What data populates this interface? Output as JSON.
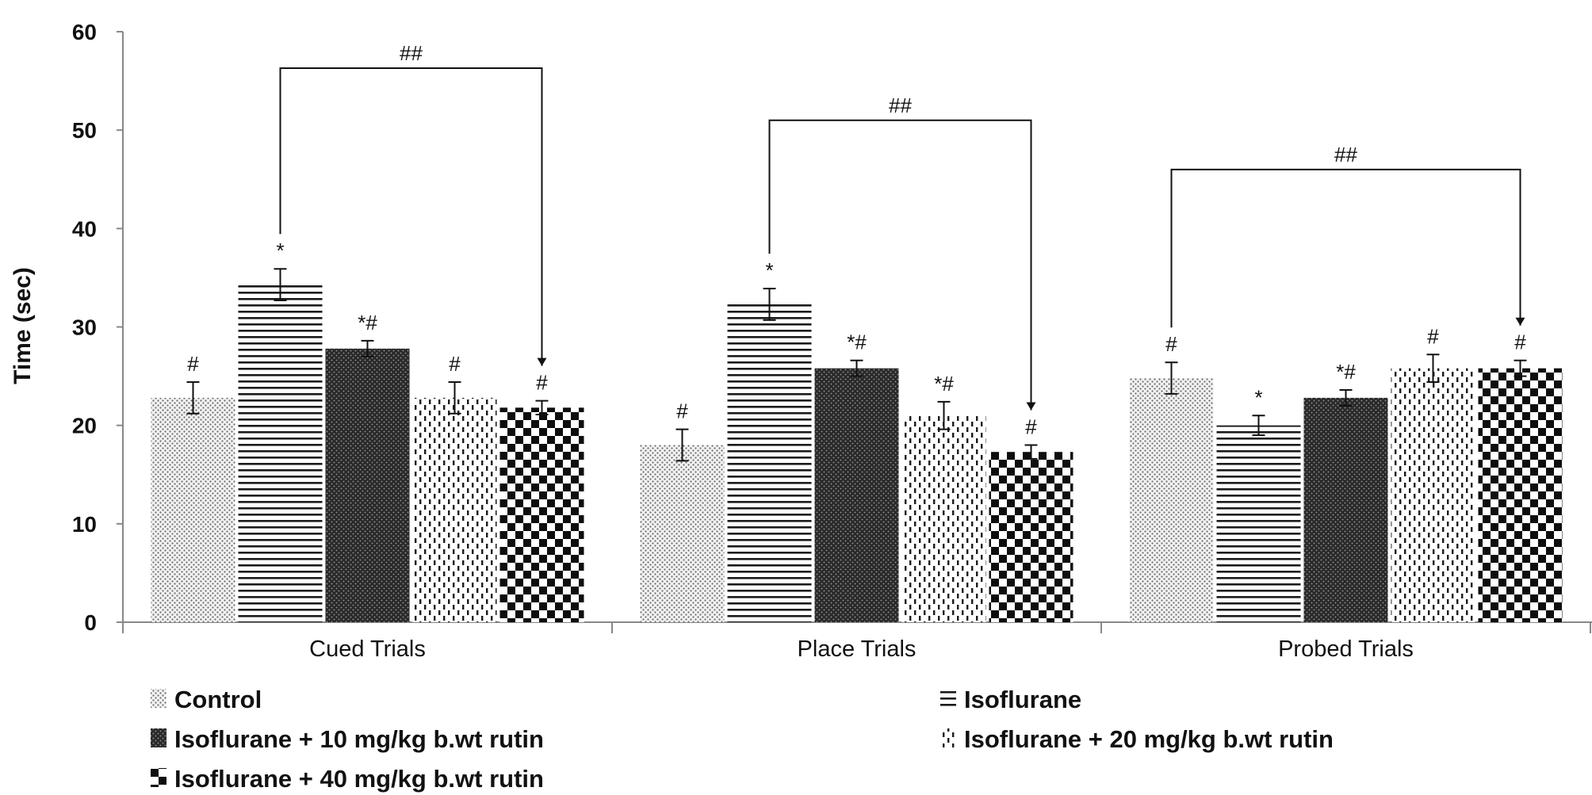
{
  "chart_data": {
    "type": "bar",
    "title": "",
    "xlabel": "",
    "ylabel": "Time (sec)",
    "ylim": [
      0,
      60
    ],
    "yticks": [
      0,
      10,
      20,
      30,
      40,
      50,
      60
    ],
    "grid": false,
    "legend_position": "bottom",
    "categories": [
      "Cued Trials",
      "Place Trials",
      "Probed Trials"
    ],
    "series": [
      {
        "name": "Control",
        "pattern": "dots-fine",
        "values": [
          22.8,
          18.0,
          24.8
        ],
        "errors": [
          1.6,
          1.6,
          1.6
        ],
        "marks": [
          "#",
          "#",
          "#"
        ]
      },
      {
        "name": "Isoflurane",
        "pattern": "horizontal-lines",
        "values": [
          34.3,
          32.3,
          20.0
        ],
        "errors": [
          1.6,
          1.6,
          1.0
        ],
        "marks": [
          "*",
          "*",
          "*"
        ]
      },
      {
        "name": "Isoflurane + 10 mg/kg b.wt rutin",
        "pattern": "dense-dots",
        "values": [
          27.8,
          25.8,
          22.8
        ],
        "errors": [
          0.8,
          0.8,
          0.8
        ],
        "marks": [
          "*#",
          "*#",
          "*#"
        ]
      },
      {
        "name": "Isoflurane + 20 mg/kg b.wt rutin",
        "pattern": "vertical-dashes",
        "values": [
          22.8,
          21.0,
          25.8
        ],
        "errors": [
          1.6,
          1.4,
          1.4
        ],
        "marks": [
          "#",
          "*#",
          "#"
        ]
      },
      {
        "name": "Isoflurane + 40 mg/kg b.wt rutin",
        "pattern": "checker",
        "values": [
          21.8,
          17.3,
          25.8
        ],
        "errors": [
          0.7,
          0.7,
          0.8
        ],
        "marks": [
          "#",
          "#",
          "#"
        ]
      }
    ],
    "significance_brackets": [
      {
        "category_index": 0,
        "from_series": 1,
        "to_series": 4,
        "label": "##",
        "y_level": 56.3
      },
      {
        "category_index": 1,
        "from_series": 1,
        "to_series": 4,
        "label": "##",
        "y_level": 51.0
      },
      {
        "category_index": 2,
        "from_series": 0,
        "to_series": 4,
        "label": "##",
        "y_level": 46.0
      }
    ]
  }
}
